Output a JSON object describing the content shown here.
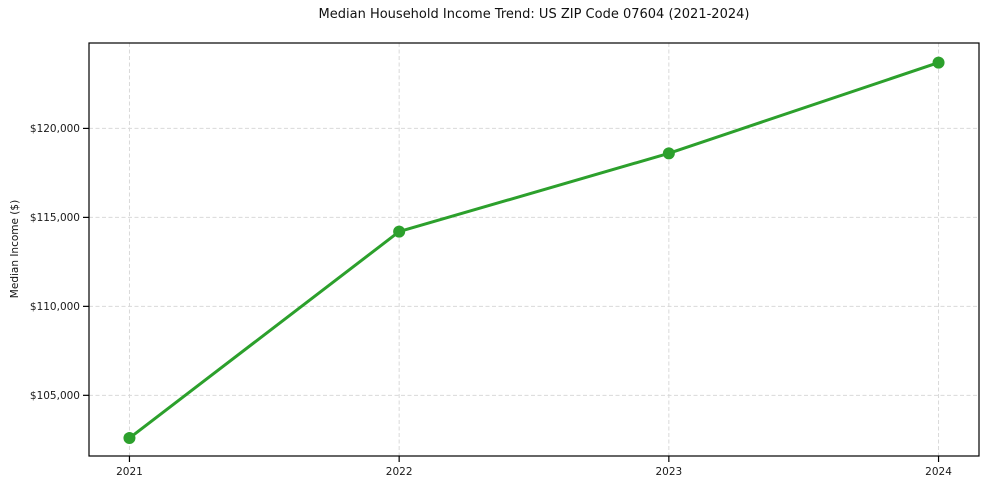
{
  "chart_data": {
    "type": "line",
    "title": "Median Household Income Trend: US ZIP Code 07604 (2021-2024)",
    "xlabel": "",
    "ylabel": "Median Income ($)",
    "x": [
      2021,
      2022,
      2023,
      2024
    ],
    "x_tick_labels": [
      "2021",
      "2022",
      "2023",
      "2024"
    ],
    "series": [
      {
        "name": "Median Income",
        "values": [
          102600,
          114200,
          118600,
          123700
        ]
      }
    ],
    "y_ticks": [
      105000,
      110000,
      115000,
      120000
    ],
    "y_tick_labels": [
      "$105,000",
      "$110,000",
      "$115,000",
      "$120,000"
    ],
    "xlim": [
      2020.85,
      2024.15
    ],
    "ylim": [
      101590,
      124800
    ],
    "grid": true,
    "legend": "none",
    "marker": "circle",
    "line_color": "#2ca02c",
    "grid_color": "#d9d9d9",
    "spine_color": "#000000",
    "text_color": "#1a1a1a",
    "background_color": "#ffffff"
  }
}
